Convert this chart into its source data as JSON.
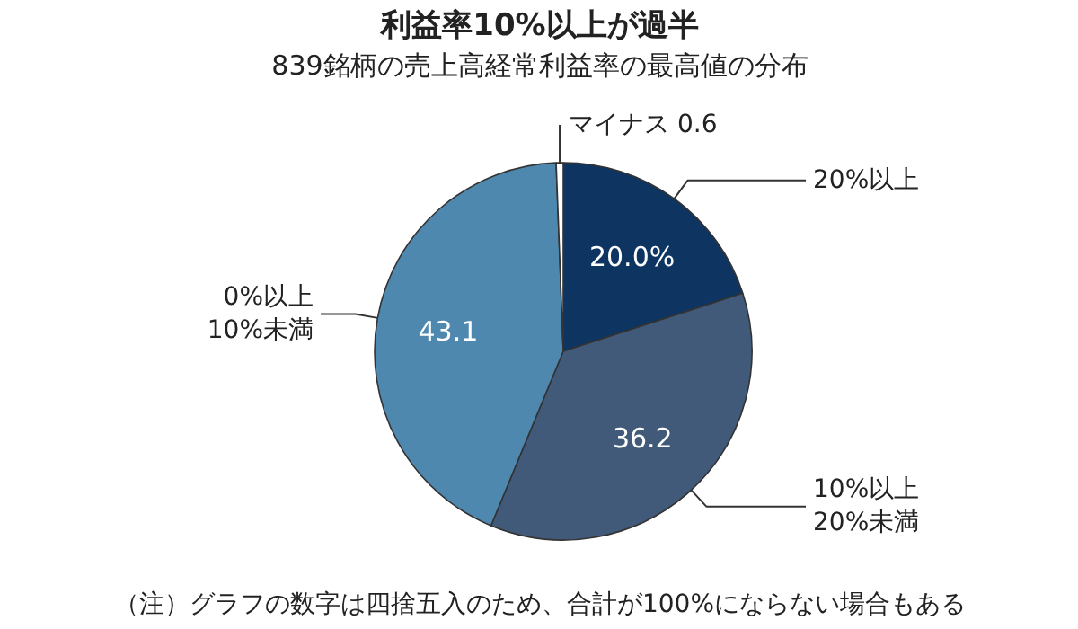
{
  "chart_data": {
    "type": "pie",
    "title": "利益率10%以上が過半",
    "subtitle": "839銘柄の売上高経常利益率の最高値の分布",
    "categories": [
      "20%以上",
      "10%以上\n20%未満",
      "0%以上\n10%未満",
      "マイナス"
    ],
    "values": [
      20.0,
      36.2,
      43.1,
      0.6
    ],
    "value_labels": [
      "20.0%",
      "36.2",
      "43.1",
      "0.6"
    ],
    "colors": [
      "#0e3561",
      "#415a79",
      "#4f88af",
      "#ffffff"
    ],
    "annotations": [
      "（注）グラフの数字は四捨五入のため、合計が100%にならない場合もある"
    ]
  }
}
